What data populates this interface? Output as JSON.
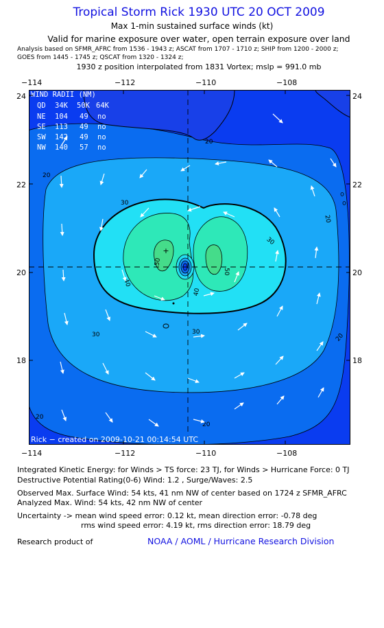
{
  "header": {
    "title": "Tropical Storm Rick 1930 UTC 20 OCT 2009",
    "subtitle1": "Max 1-min sustained surface winds (kt)",
    "subtitle2": "Valid for marine exposure over water, open terrain exposure over land",
    "analysis_line1": "Analysis based on   SFMR_AFRC from 1536 - 1943 z;  ASCAT from 1707 - 1710 z;  SHIP from 1200 - 2000 z;",
    "analysis_line2": "GOES from 1445 - 1745 z;  QSCAT from 1320 - 1324 z;",
    "position_line": "1930 z position interpolated from 1831 Vortex; mslp = 991.0 mb"
  },
  "map": {
    "x_ticks": [
      "−114",
      "−112",
      "−110",
      "−108"
    ],
    "y_ticks": [
      "24",
      "22",
      "20",
      "18"
    ],
    "credit": "Rick − created on 2009-10-21 00:14:54 UTC",
    "contour_labels": [
      "20",
      "20",
      "20",
      "20",
      "20",
      "20",
      "30",
      "30",
      "30",
      "30",
      "40",
      "40",
      "50",
      "50"
    ],
    "wind_radii": {
      "title": "WIND RADII (NM)",
      "header": [
        "QD",
        "34K",
        "50K",
        "64K"
      ],
      "rows": [
        [
          "NE",
          "104",
          "49",
          "no"
        ],
        [
          "SE",
          "113",
          "49",
          "no"
        ],
        [
          "SW",
          "142",
          "49",
          "no"
        ],
        [
          "NW",
          "140",
          "57",
          "no"
        ]
      ]
    },
    "colors": {
      "band_10": "#0a3cf0",
      "band_20": "#0a6cf0",
      "band_30": "#1aa8f8",
      "band_40": "#22e0f5",
      "band_50": "#2ee8b8",
      "band_55": "#45dc8a",
      "land": "#1840e8"
    }
  },
  "footer": {
    "ike_line": "Integrated Kinetic Energy:  for Winds > TS force: 23 TJ,  for Winds > Hurricane Force: 0 TJ",
    "dpr_line": "Destructive Potential Rating(0-6)   Wind: 1.2 , Surge/Waves: 2.5",
    "observed_line": "Observed Max. Surface Wind: 54 kts, 41 nm NW of center based on 1724 z SFMR_AFRC",
    "analyzed_line": "Analyzed Max. Wind: 54 kts, 42 nm NW of center",
    "uncertainty_line1": "Uncertainty -> mean wind speed error: 0.12 kt,   mean direction error:  -0.78 deg",
    "uncertainty_line2": "rms wind speed error: 4.19 kt,   rms direction error: 18.79 deg",
    "research_label": "Research product of",
    "research_org": "NOAA / AOML / Hurricane Research Division"
  }
}
